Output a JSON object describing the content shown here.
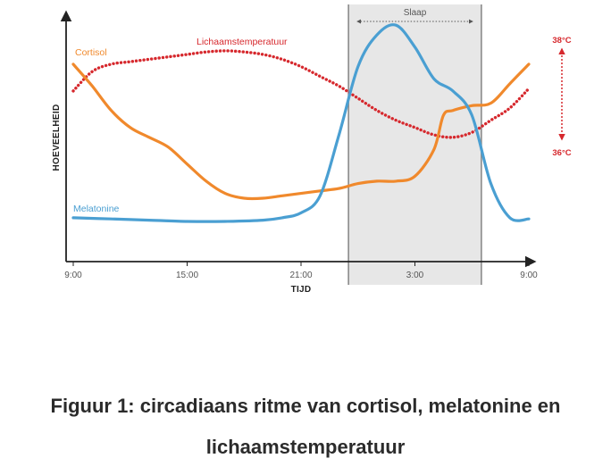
{
  "colors": {
    "cortisol": "#f0892c",
    "melatonine": "#4a9fd2",
    "temperature": "#d6282d",
    "sleep_band": "#e7e7e7",
    "axis": "#222222"
  },
  "chart_data": {
    "type": "line",
    "xlabel": "TIJD",
    "ylabel": "HOEVEELHEID",
    "x_ticks": [
      "9:00",
      "15:00",
      "21:00",
      "3:00",
      "9:00"
    ],
    "x_range_hours": [
      0,
      24
    ],
    "y_range": [
      0,
      100
    ],
    "grid": false,
    "sleep_band": {
      "label": "Slaap",
      "start_hour": 14.5,
      "end_hour": 21.5
    },
    "temperature_axis": {
      "top_label": "38°C",
      "bottom_label": "36°C"
    },
    "series": [
      {
        "name": "Cortisol",
        "style": "solid",
        "x": [
          0,
          1,
          2,
          3,
          4,
          5,
          6,
          7,
          8,
          9,
          10,
          11,
          12,
          13,
          14,
          15,
          16,
          17,
          18,
          19,
          19.5,
          20,
          21,
          22,
          23,
          24
        ],
        "y": [
          81,
          72,
          62,
          55,
          51,
          47,
          40,
          33,
          28,
          26,
          26,
          27,
          28,
          29,
          30,
          32,
          33,
          33,
          35,
          46,
          60,
          62,
          64,
          65,
          73,
          81
        ]
      },
      {
        "name": "Melatonine",
        "style": "solid",
        "x": [
          0,
          2,
          4,
          6,
          8,
          10,
          11,
          12,
          13,
          14,
          15,
          16,
          17,
          18,
          19,
          20,
          21,
          22,
          23,
          24
        ],
        "y": [
          18,
          17.5,
          17,
          16.5,
          16.5,
          17,
          18,
          20,
          27,
          52,
          80,
          93,
          97,
          88,
          75,
          70,
          60,
          32,
          18,
          17.5
        ]
      },
      {
        "name": "Lichaamstemperatuur",
        "style": "dotted",
        "x": [
          0,
          1,
          2,
          3,
          4,
          5,
          6,
          7,
          8,
          9,
          10,
          11,
          12,
          13,
          14,
          15,
          16,
          17,
          18,
          19,
          20,
          21,
          22,
          23,
          24
        ],
        "y": [
          70,
          78,
          81,
          82,
          83,
          84,
          85,
          86,
          86.5,
          86,
          85,
          83,
          80,
          76,
          72,
          67,
          62,
          58,
          55,
          52,
          51,
          53,
          58,
          63,
          71
        ]
      }
    ]
  },
  "caption": {
    "line1": "Figuur 1: circadiaans ritme van cortisol, melatonine en",
    "line2": "lichaamstemperatuur"
  }
}
